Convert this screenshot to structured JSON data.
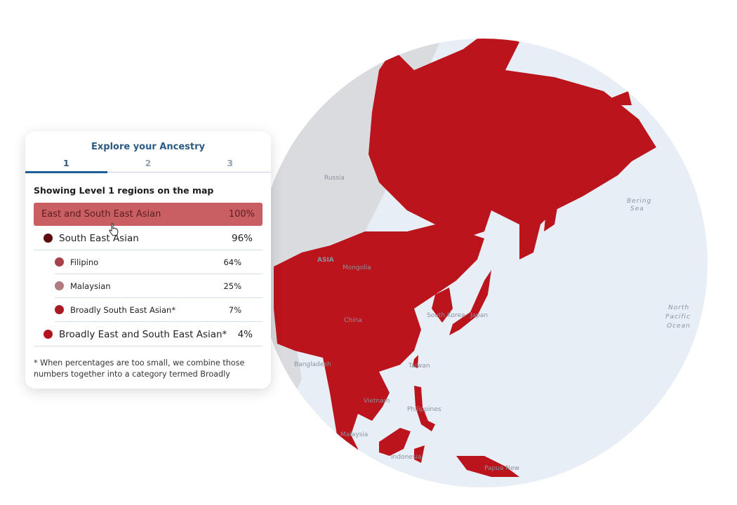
{
  "panel": {
    "title": "Explore your Ancestry",
    "tabs": [
      {
        "label": "1",
        "active": true
      },
      {
        "label": "2",
        "active": false
      },
      {
        "label": "3",
        "active": false
      }
    ],
    "showing_text": "Showing Level 1 regions on the map",
    "highlight": {
      "label": "East and South East Asian",
      "percent": "100%",
      "color": "#c95f63"
    },
    "rows": [
      {
        "label": "South East Asian",
        "percent": "96%",
        "color": "#5e0b10",
        "level": 2
      },
      {
        "label": "Filipino",
        "percent": "64%",
        "color": "#a8424a",
        "level": 3
      },
      {
        "label": "Malaysian",
        "percent": "25%",
        "color": "#b27a7e",
        "level": 3
      },
      {
        "label": "Broadly South East Asian*",
        "percent": "7%",
        "color": "#a81a22",
        "level": 3
      },
      {
        "label": "Broadly East and South East Asian*",
        "percent": "4%",
        "color": "#b3141c",
        "level": 2
      }
    ],
    "footnote": "* When percentages are too small, we combine those numbers together into a category termed Broadly"
  },
  "map": {
    "region_color": "#bc141c",
    "ocean_color": "#e8eef5",
    "land_color": "#d9dbdf",
    "labels": {
      "russia": "Russia",
      "bering": "Bering",
      "sea": "Sea",
      "asia": "ASIA",
      "mongolia": "Mongolia",
      "china": "China",
      "south_korea": "South Korea",
      "japan": "Japan",
      "north": "North",
      "pacific": "Pacific",
      "ocean": "Ocean",
      "bangladesh": "Bangladesh",
      "taiwan": "Taiwan",
      "vietnam": "Vietnam",
      "philippines": "Philippines",
      "malaysia": "Malaysia",
      "indonesia": "Indonesia",
      "papua": "Papua New"
    }
  }
}
